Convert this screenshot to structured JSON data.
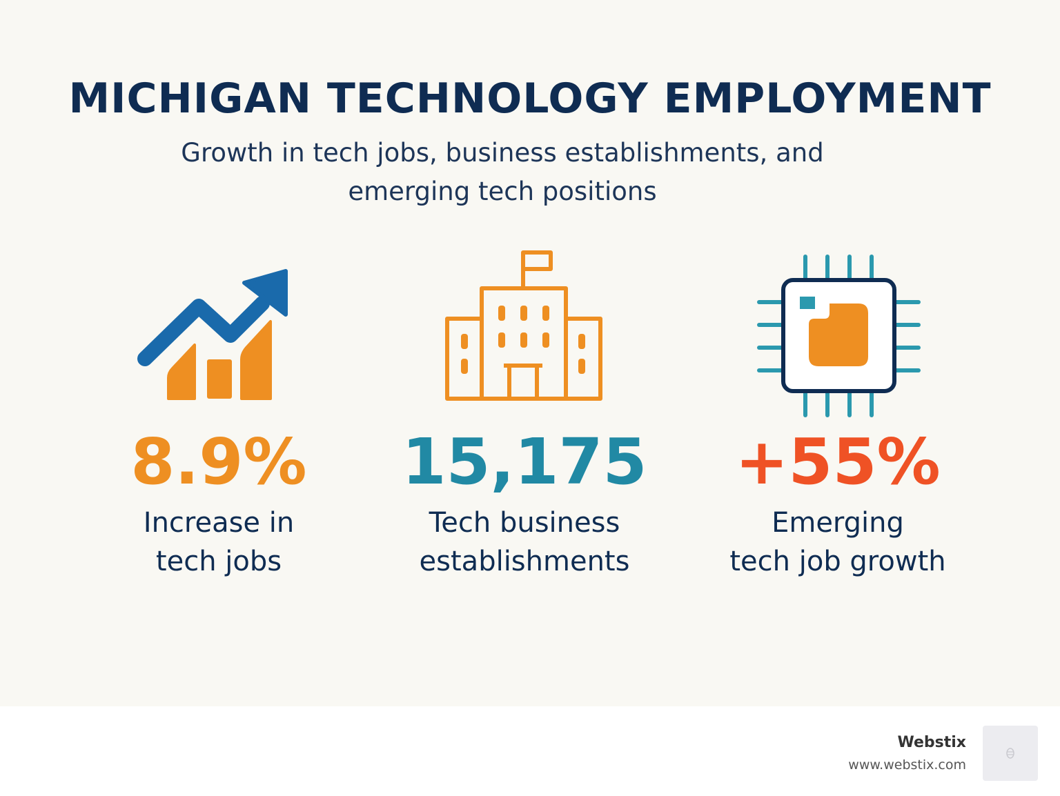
{
  "header": {
    "title": "MICHIGAN TECHNOLOGY EMPLOYMENT",
    "subtitle_line1": "Growth in tech jobs, business establishments, and",
    "subtitle_line2": "emerging tech positions"
  },
  "stats": [
    {
      "icon": "trending-chart-icon",
      "value": "8.9%",
      "label_line1": "Increase in",
      "label_line2": "tech jobs",
      "color": "#ee8f22"
    },
    {
      "icon": "office-building-icon",
      "value": "15,175",
      "label_line1": "Tech business",
      "label_line2": "establishments",
      "color": "#2189a4"
    },
    {
      "icon": "microchip-icon",
      "value": "+55%",
      "label_line1": "Emerging",
      "label_line2": "tech job growth",
      "color": "#ef5225"
    }
  ],
  "footer": {
    "brand_name": "Webstix",
    "brand_url": "www.webstix.com"
  },
  "colors": {
    "navy": "#0f2c52",
    "blue": "#1a6aab",
    "orange": "#ee8f22",
    "teal": "#2189a4",
    "red": "#ef5225",
    "background": "#f9f8f3"
  }
}
